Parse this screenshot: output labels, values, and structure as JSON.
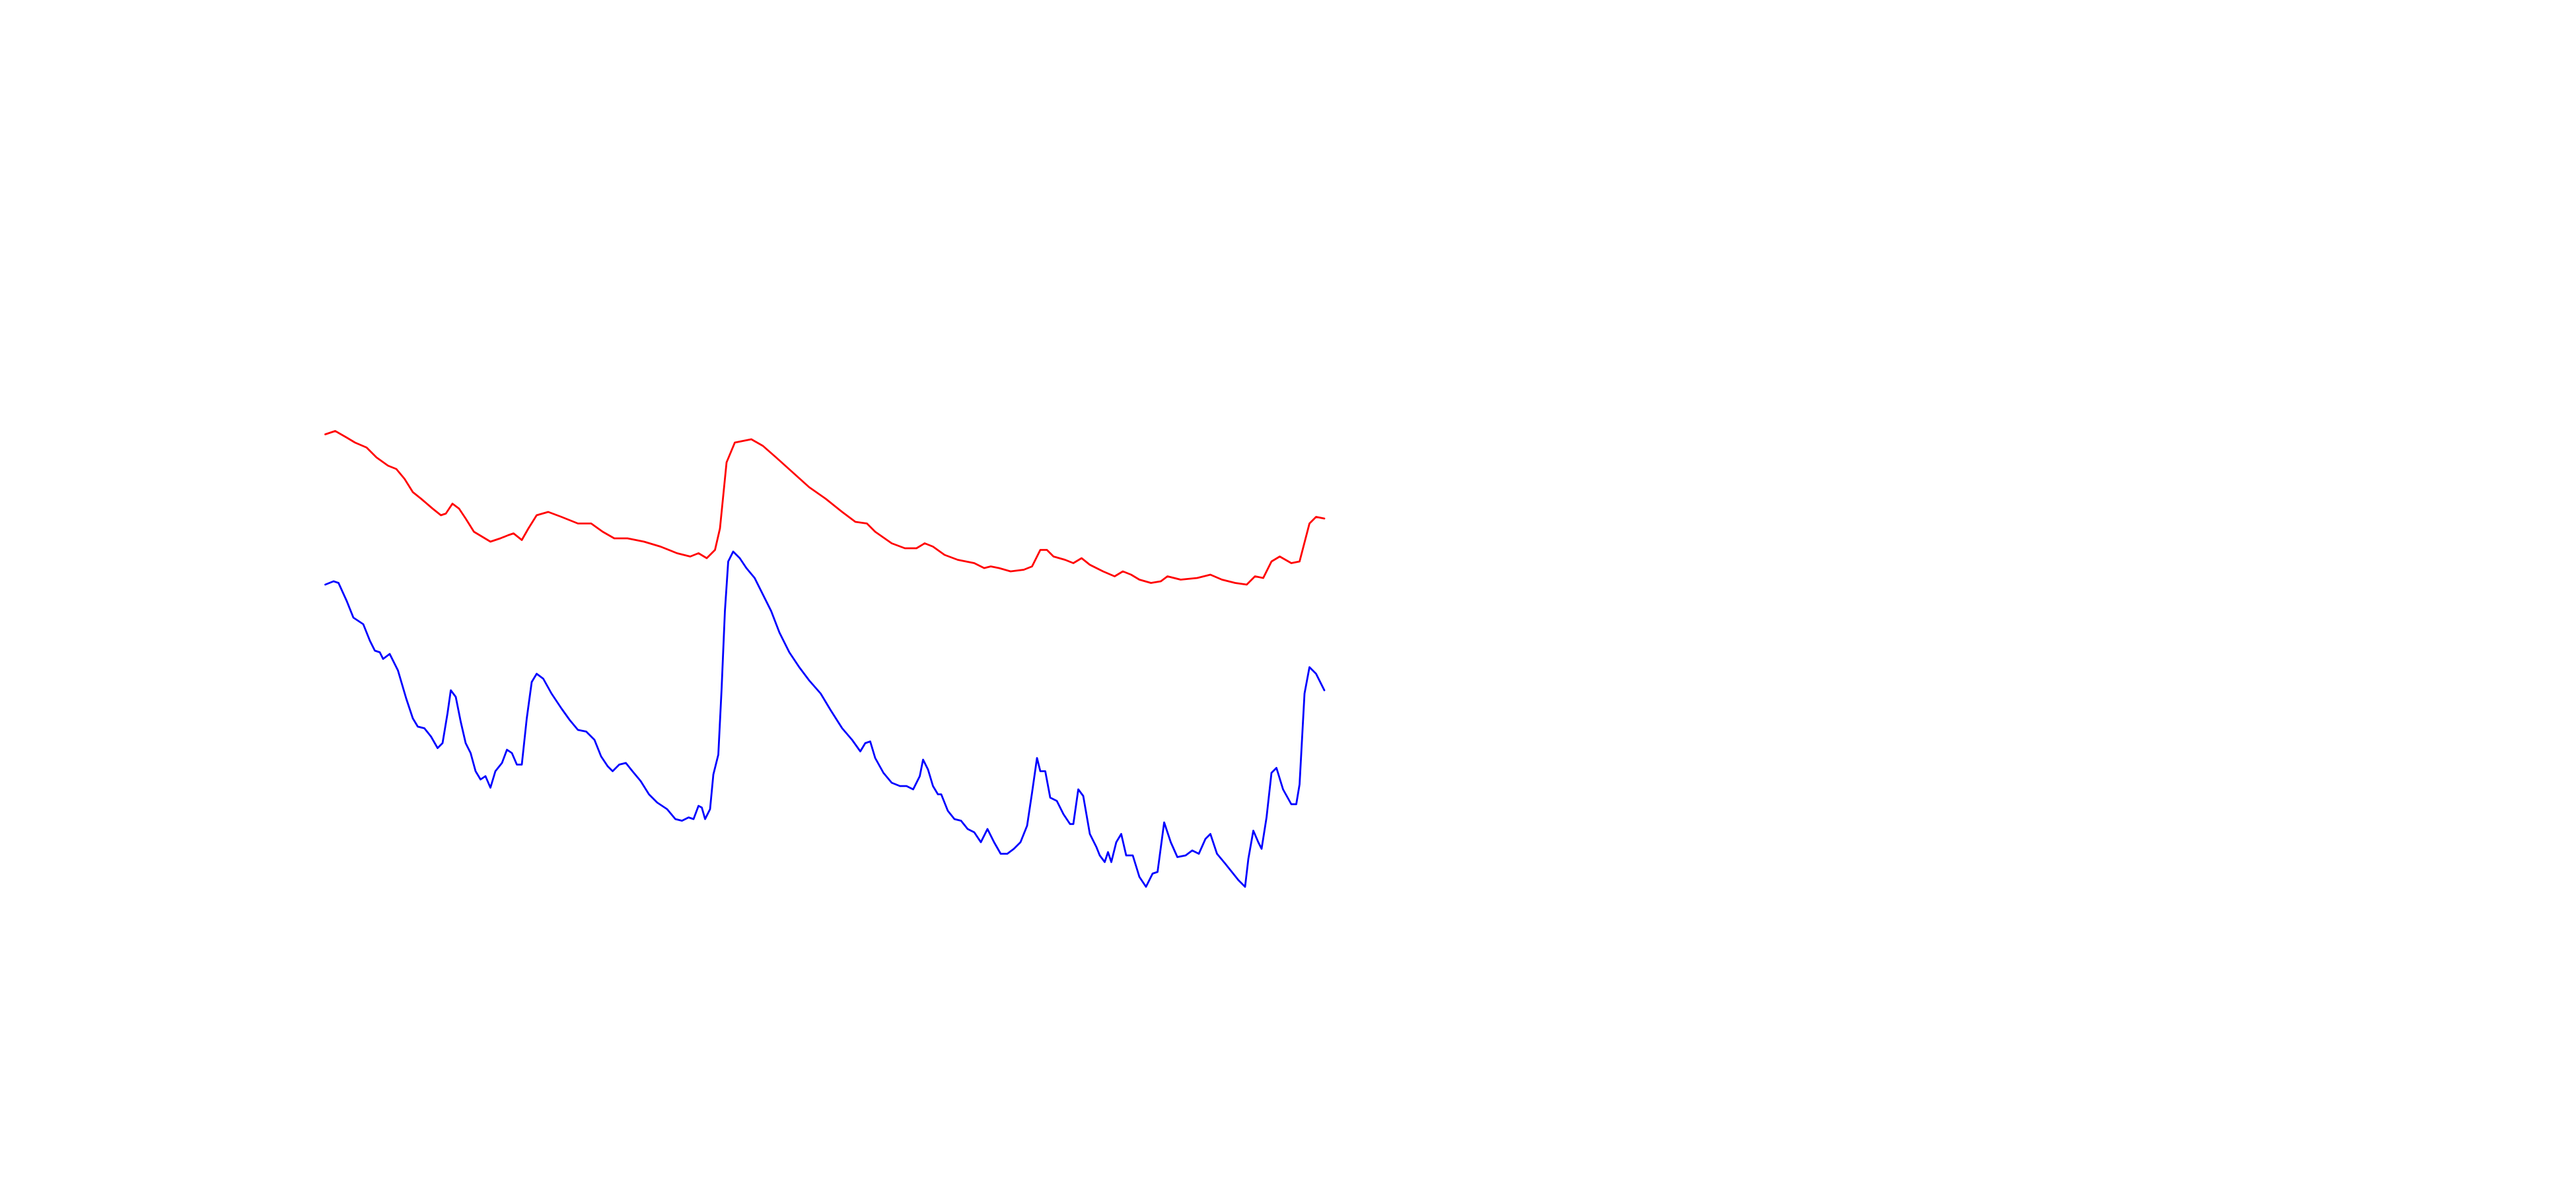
{
  "chart_data": {
    "type": "line",
    "xlim": [
      0,
      1560
    ],
    "ylim": [
      720,
      0
    ],
    "series": [
      {
        "color": "#ff0000",
        "x": [
          197,
          203,
          210,
          215,
          222,
          228,
          235,
          240,
          245,
          250,
          255,
          262,
          267,
          270,
          274,
          278,
          282,
          287,
          292,
          297,
          303,
          308,
          311,
          316,
          320,
          325,
          332,
          340,
          350,
          358,
          365,
          372,
          380,
          390,
          400,
          410,
          418,
          423,
          428,
          433,
          436,
          440,
          445,
          455,
          462,
          470,
          480,
          490,
          500,
          510,
          518,
          525,
          530,
          540,
          548,
          555,
          560,
          565,
          572,
          580,
          590,
          596,
          600,
          605,
          612,
          620,
          625,
          630,
          634,
          638,
          645,
          650,
          655,
          660,
          668,
          675,
          680,
          685,
          690,
          697,
          703,
          707,
          715,
          725,
          733,
          740,
          748,
          755,
          760,
          765,
          770,
          775,
          782,
          787,
          793,
          797,
          802
        ],
        "values": [
          263,
          261,
          265,
          268,
          271,
          277,
          282,
          284,
          290,
          298,
          302,
          308,
          312,
          311,
          305,
          308,
          314,
          322,
          325,
          328,
          326,
          324,
          323,
          327,
          320,
          312,
          310,
          313,
          317,
          317,
          322,
          326,
          326,
          328,
          331,
          335,
          337,
          335,
          338,
          333,
          320,
          280,
          268,
          266,
          270,
          277,
          286,
          295,
          302,
          310,
          316,
          317,
          322,
          329,
          332,
          332,
          329,
          331,
          336,
          339,
          341,
          344,
          343,
          344,
          346,
          345,
          343,
          333,
          333,
          337,
          339,
          341,
          338,
          342,
          346,
          349,
          346,
          348,
          351,
          353,
          352,
          349,
          351,
          350,
          348,
          351,
          353,
          354,
          349,
          350,
          340,
          337,
          341,
          340,
          317,
          313,
          314
        ]
      },
      {
        "color": "#0000ff",
        "x": [
          197,
          202,
          205,
          210,
          214,
          220,
          224,
          227,
          230,
          232,
          236,
          241,
          246,
          250,
          253,
          257,
          261,
          265,
          268,
          271,
          273,
          276,
          279,
          282,
          285,
          288,
          291,
          294,
          297,
          300,
          304,
          307,
          310,
          313,
          316,
          319,
          322,
          325,
          329,
          334,
          340,
          345,
          350,
          355,
          360,
          364,
          368,
          371,
          375,
          379,
          383,
          388,
          393,
          398,
          404,
          409,
          413,
          417,
          420,
          423,
          425,
          427,
          430,
          432,
          435,
          437,
          439,
          441,
          444,
          448,
          452,
          457,
          462,
          467,
          472,
          478,
          484,
          490,
          497,
          503,
          510,
          516,
          521,
          524,
          527,
          530,
          535,
          540,
          545,
          549,
          553,
          557,
          559,
          562,
          565,
          568,
          570,
          574,
          578,
          582,
          586,
          590,
          594,
          598,
          602,
          606,
          610,
          614,
          618,
          622,
          625,
          628,
          630,
          633,
          636,
          640,
          644,
          648,
          650,
          653,
          656,
          660,
          664,
          666,
          669,
          671,
          673,
          676,
          679,
          682,
          686,
          690,
          694,
          698,
          701,
          705,
          709,
          713,
          718,
          722,
          726,
          730,
          733,
          737,
          742,
          746,
          750,
          754,
          756,
          759,
          762,
          764,
          767,
          770,
          773,
          777,
          782,
          785,
          787,
          790,
          793,
          797,
          802
        ],
        "values": [
          354,
          352,
          353,
          364,
          374,
          378,
          388,
          394,
          395,
          399,
          396,
          406,
          423,
          435,
          440,
          441,
          446,
          453,
          450,
          432,
          418,
          422,
          437,
          450,
          456,
          467,
          472,
          470,
          477,
          467,
          462,
          454,
          456,
          463,
          463,
          435,
          413,
          408,
          411,
          420,
          429,
          436,
          442,
          443,
          448,
          458,
          464,
          467,
          463,
          462,
          467,
          473,
          481,
          486,
          490,
          496,
          497,
          495,
          496,
          488,
          489,
          496,
          490,
          469,
          457,
          417,
          370,
          340,
          334,
          338,
          344,
          350,
          360,
          370,
          383,
          395,
          404,
          412,
          420,
          430,
          441,
          448,
          455,
          450,
          449,
          459,
          468,
          474,
          476,
          476,
          478,
          470,
          460,
          466,
          476,
          481,
          481,
          491,
          496,
          497,
          502,
          504,
          510,
          502,
          510,
          517,
          517,
          514,
          510,
          500,
          480,
          459,
          467,
          467,
          483,
          485,
          493,
          499,
          499,
          478,
          482,
          505,
          513,
          518,
          522,
          516,
          522,
          510,
          505,
          518,
          518,
          531,
          537,
          529,
          528,
          498,
          510,
          519,
          518,
          515,
          517,
          508,
          505,
          517,
          523,
          528,
          533,
          537,
          520,
          503,
          510,
          514,
          495,
          468,
          465,
          478,
          487,
          487,
          475,
          420,
          404,
          408,
          418
        ]
      }
    ]
  }
}
